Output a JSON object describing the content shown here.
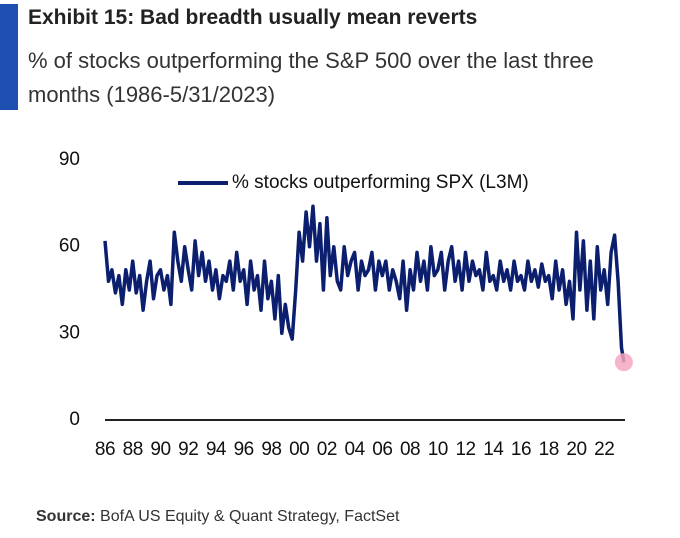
{
  "chart_data": {
    "type": "line",
    "title": "Exhibit 15: Bad breadth usually mean reverts",
    "subtitle": "% of stocks outperforming the S&P 500 over the last three months (1986-5/31/2023)",
    "source_label": "Source:",
    "source_text": "BofA US Equity & Quant Strategy, FactSet",
    "x": [
      1986,
      1986.25,
      1986.5,
      1986.75,
      1987,
      1987.25,
      1987.5,
      1987.75,
      1988,
      1988.25,
      1988.5,
      1988.75,
      1989,
      1989.25,
      1989.5,
      1989.75,
      1990,
      1990.25,
      1990.5,
      1990.75,
      1991,
      1991.25,
      1991.5,
      1991.75,
      1992,
      1992.25,
      1992.5,
      1992.75,
      1993,
      1993.25,
      1993.5,
      1993.75,
      1994,
      1994.25,
      1994.5,
      1994.75,
      1995,
      1995.25,
      1995.5,
      1995.75,
      1996,
      1996.25,
      1996.5,
      1996.75,
      1997,
      1997.25,
      1997.5,
      1997.75,
      1998,
      1998.25,
      1998.5,
      1998.75,
      1999,
      1999.25,
      1999.5,
      1999.75,
      2000,
      2000.25,
      2000.5,
      2000.75,
      2001,
      2001.25,
      2001.5,
      2001.75,
      2002,
      2002.25,
      2002.5,
      2002.75,
      2003,
      2003.25,
      2003.5,
      2003.75,
      2004,
      2004.25,
      2004.5,
      2004.75,
      2005,
      2005.25,
      2005.5,
      2005.75,
      2006,
      2006.25,
      2006.5,
      2006.75,
      2007,
      2007.25,
      2007.5,
      2007.75,
      2008,
      2008.25,
      2008.5,
      2008.75,
      2009,
      2009.25,
      2009.5,
      2009.75,
      2010,
      2010.25,
      2010.5,
      2010.75,
      2011,
      2011.25,
      2011.5,
      2011.75,
      2012,
      2012.25,
      2012.5,
      2012.75,
      2013,
      2013.25,
      2013.5,
      2013.75,
      2014,
      2014.25,
      2014.5,
      2014.75,
      2015,
      2015.25,
      2015.5,
      2015.75,
      2016,
      2016.25,
      2016.5,
      2016.75,
      2017,
      2017.25,
      2017.5,
      2017.75,
      2018,
      2018.25,
      2018.5,
      2018.75,
      2019,
      2019.25,
      2019.5,
      2019.75,
      2020,
      2020.25,
      2020.5,
      2020.75,
      2021,
      2021.25,
      2021.5,
      2021.75,
      2022,
      2022.25,
      2022.5,
      2022.75,
      2023,
      2023.25,
      2023.42
    ],
    "series": [
      {
        "name": "% stocks outperforming SPX (L3M)",
        "color": "#0b1f6e",
        "values": [
          62,
          48,
          52,
          44,
          50,
          40,
          52,
          45,
          55,
          44,
          50,
          38,
          48,
          55,
          42,
          50,
          52,
          45,
          50,
          40,
          65,
          55,
          48,
          60,
          52,
          45,
          62,
          50,
          58,
          48,
          55,
          45,
          52,
          42,
          50,
          48,
          55,
          45,
          58,
          48,
          52,
          40,
          55,
          45,
          50,
          38,
          55,
          42,
          48,
          35,
          50,
          30,
          40,
          32,
          28,
          45,
          65,
          55,
          72,
          60,
          74,
          55,
          68,
          45,
          70,
          50,
          60,
          48,
          45,
          60,
          50,
          55,
          58,
          45,
          55,
          50,
          52,
          58,
          45,
          55,
          50,
          55,
          45,
          52,
          48,
          42,
          55,
          38,
          52,
          45,
          58,
          48,
          55,
          45,
          60,
          50,
          52,
          58,
          45,
          55,
          60,
          48,
          55,
          45,
          58,
          48,
          55,
          50,
          52,
          45,
          58,
          48,
          50,
          45,
          55,
          48,
          52,
          45,
          55,
          48,
          50,
          45,
          55,
          48,
          52,
          46,
          54,
          48,
          50,
          42,
          55,
          45,
          52,
          40,
          48,
          35,
          65,
          45,
          62,
          38,
          55,
          35,
          60,
          45,
          52,
          40,
          58,
          64,
          48,
          25,
          20
        ]
      }
    ],
    "marker_color": "#f4a6c0",
    "legend": "top",
    "xlim": [
      1986,
      2023.5
    ],
    "xticks": [
      {
        "value": 1986,
        "label": "86"
      },
      {
        "value": 1988,
        "label": "88"
      },
      {
        "value": 1990,
        "label": "90"
      },
      {
        "value": 1992,
        "label": "92"
      },
      {
        "value": 1994,
        "label": "94"
      },
      {
        "value": 1996,
        "label": "96"
      },
      {
        "value": 1998,
        "label": "98"
      },
      {
        "value": 2000,
        "label": "00"
      },
      {
        "value": 2002,
        "label": "02"
      },
      {
        "value": 2004,
        "label": "04"
      },
      {
        "value": 2006,
        "label": "06"
      },
      {
        "value": 2008,
        "label": "08"
      },
      {
        "value": 2010,
        "label": "10"
      },
      {
        "value": 2012,
        "label": "12"
      },
      {
        "value": 2014,
        "label": "14"
      },
      {
        "value": 2016,
        "label": "16"
      },
      {
        "value": 2018,
        "label": "18"
      },
      {
        "value": 2020,
        "label": "20"
      },
      {
        "value": 2022,
        "label": "22"
      }
    ],
    "ylim": [
      0,
      90
    ],
    "yticks": [
      0,
      30,
      60,
      90
    ],
    "grid": false
  }
}
